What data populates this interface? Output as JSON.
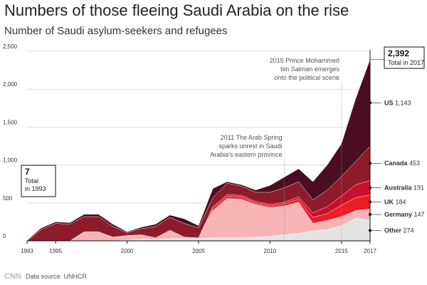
{
  "chart_data": {
    "type": "stacked-area",
    "title": "Numbers of those fleeing Saudi Arabia on the rise",
    "subtitle": "Number of Saudi asylum-seekers and refugees",
    "source": "Data source: UNHCR",
    "logo": "CNN",
    "x": [
      1993,
      1994,
      1995,
      1996,
      1997,
      1998,
      1999,
      2000,
      2001,
      2002,
      2003,
      2004,
      2005,
      2006,
      2007,
      2008,
      2009,
      2010,
      2011,
      2012,
      2013,
      2014,
      2015,
      2016,
      2017
    ],
    "xlim": [
      1993,
      2017
    ],
    "xticks": [
      1993,
      1995,
      2000,
      2005,
      2010,
      2015,
      2017
    ],
    "ylim": [
      0,
      2500
    ],
    "yticks": [
      0,
      500,
      {
        "value": 1000,
        "label": "1,000"
      },
      {
        "value": 1500,
        "label": "1,500"
      },
      {
        "value": 2000,
        "label": "2,000"
      },
      {
        "value": 2500,
        "label": "2,500"
      }
    ],
    "grid": true,
    "series": [
      {
        "name": "Other",
        "color": "#e4e4e4",
        "values": [
          0,
          0,
          0,
          0,
          0,
          0,
          0,
          10,
          20,
          20,
          30,
          30,
          30,
          40,
          40,
          40,
          50,
          60,
          80,
          100,
          130,
          150,
          200,
          300,
          274
        ]
      },
      {
        "name": "Germany",
        "color": "#f6b4b4",
        "values": [
          0,
          0,
          0,
          0,
          120,
          120,
          50,
          60,
          60,
          20,
          110,
          20,
          10,
          360,
          520,
          510,
          430,
          380,
          380,
          410,
          100,
          120,
          120,
          100,
          147
        ]
      },
      {
        "name": "UK",
        "color": "#ee1c25",
        "values": [
          0,
          0,
          0,
          0,
          0,
          0,
          0,
          0,
          0,
          0,
          0,
          0,
          0,
          30,
          30,
          30,
          20,
          20,
          30,
          40,
          80,
          90,
          150,
          170,
          184
        ]
      },
      {
        "name": "Australia",
        "color": "#c8102e",
        "values": [
          0,
          0,
          0,
          0,
          0,
          0,
          0,
          0,
          0,
          0,
          0,
          0,
          0,
          20,
          20,
          20,
          20,
          20,
          20,
          30,
          60,
          90,
          120,
          170,
          191
        ]
      },
      {
        "name": "Canada",
        "color": "#8e1a2a",
        "values": [
          0,
          150,
          230,
          220,
          200,
          200,
          140,
          40,
          80,
          150,
          170,
          180,
          130,
          120,
          150,
          120,
          120,
          160,
          190,
          200,
          170,
          220,
          260,
          310,
          453
        ]
      },
      {
        "name": "US",
        "color": "#4a0d22",
        "values": [
          7,
          20,
          20,
          20,
          30,
          30,
          30,
          10,
          20,
          30,
          30,
          60,
          30,
          120,
          20,
          20,
          30,
          90,
          140,
          170,
          240,
          330,
          430,
          830,
          1143
        ],
        "value_labels": [
          null,
          null,
          null,
          null,
          null,
          null,
          null,
          null,
          null,
          null,
          null,
          null,
          null,
          null,
          null,
          null,
          null,
          null,
          null,
          null,
          null,
          null,
          null,
          null,
          "1,143"
        ]
      }
    ],
    "totals": [
      {
        "x": 1993,
        "value": 7,
        "text": [
          "Total",
          "in 1993"
        ]
      },
      {
        "x": 2017,
        "value": 2392,
        "label": "2,392",
        "text": [
          "Total in 2017"
        ]
      }
    ],
    "events": [
      {
        "x": 2011,
        "lines": [
          "The Arab Spring",
          "sparks unrest in Saudi",
          "Arabia's eastern province"
        ]
      },
      {
        "x": 2015,
        "lines": [
          "Prince Mohammed",
          "bin Salman emerges",
          "onto the political scene"
        ]
      }
    ]
  }
}
